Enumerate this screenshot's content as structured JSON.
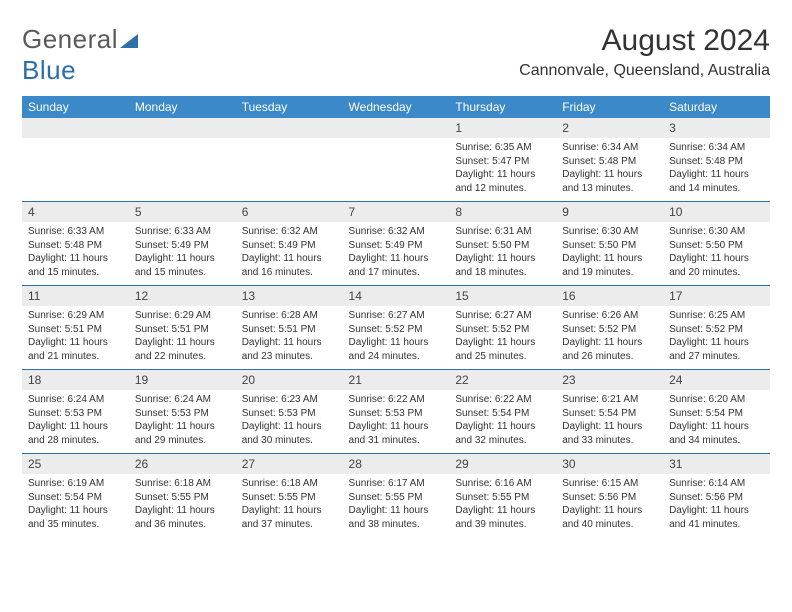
{
  "brand": {
    "part1": "General",
    "part2": "Blue"
  },
  "title": "August 2024",
  "location": "Cannonvale, Queensland, Australia",
  "weekday_labels": [
    "Sunday",
    "Monday",
    "Tuesday",
    "Wednesday",
    "Thursday",
    "Friday",
    "Saturday"
  ],
  "colors": {
    "header_blue": "#3b89c9",
    "rule_blue": "#2d6fa8",
    "day_bg": "#ececec",
    "background": "#ffffff",
    "text": "#222222"
  },
  "typography": {
    "month_title_pt": 30,
    "location_pt": 16,
    "weekday_pt": 12,
    "daynum_pt": 12,
    "body_pt": 10
  },
  "layout": {
    "columns": 7,
    "rows": 5,
    "first_weekday_index": 4
  },
  "days": [
    {
      "n": 1,
      "sunrise": "6:35 AM",
      "sunset": "5:47 PM",
      "daylight": "11 hours and 12 minutes."
    },
    {
      "n": 2,
      "sunrise": "6:34 AM",
      "sunset": "5:48 PM",
      "daylight": "11 hours and 13 minutes."
    },
    {
      "n": 3,
      "sunrise": "6:34 AM",
      "sunset": "5:48 PM",
      "daylight": "11 hours and 14 minutes."
    },
    {
      "n": 4,
      "sunrise": "6:33 AM",
      "sunset": "5:48 PM",
      "daylight": "11 hours and 15 minutes."
    },
    {
      "n": 5,
      "sunrise": "6:33 AM",
      "sunset": "5:49 PM",
      "daylight": "11 hours and 15 minutes."
    },
    {
      "n": 6,
      "sunrise": "6:32 AM",
      "sunset": "5:49 PM",
      "daylight": "11 hours and 16 minutes."
    },
    {
      "n": 7,
      "sunrise": "6:32 AM",
      "sunset": "5:49 PM",
      "daylight": "11 hours and 17 minutes."
    },
    {
      "n": 8,
      "sunrise": "6:31 AM",
      "sunset": "5:50 PM",
      "daylight": "11 hours and 18 minutes."
    },
    {
      "n": 9,
      "sunrise": "6:30 AM",
      "sunset": "5:50 PM",
      "daylight": "11 hours and 19 minutes."
    },
    {
      "n": 10,
      "sunrise": "6:30 AM",
      "sunset": "5:50 PM",
      "daylight": "11 hours and 20 minutes."
    },
    {
      "n": 11,
      "sunrise": "6:29 AM",
      "sunset": "5:51 PM",
      "daylight": "11 hours and 21 minutes."
    },
    {
      "n": 12,
      "sunrise": "6:29 AM",
      "sunset": "5:51 PM",
      "daylight": "11 hours and 22 minutes."
    },
    {
      "n": 13,
      "sunrise": "6:28 AM",
      "sunset": "5:51 PM",
      "daylight": "11 hours and 23 minutes."
    },
    {
      "n": 14,
      "sunrise": "6:27 AM",
      "sunset": "5:52 PM",
      "daylight": "11 hours and 24 minutes."
    },
    {
      "n": 15,
      "sunrise": "6:27 AM",
      "sunset": "5:52 PM",
      "daylight": "11 hours and 25 minutes."
    },
    {
      "n": 16,
      "sunrise": "6:26 AM",
      "sunset": "5:52 PM",
      "daylight": "11 hours and 26 minutes."
    },
    {
      "n": 17,
      "sunrise": "6:25 AM",
      "sunset": "5:52 PM",
      "daylight": "11 hours and 27 minutes."
    },
    {
      "n": 18,
      "sunrise": "6:24 AM",
      "sunset": "5:53 PM",
      "daylight": "11 hours and 28 minutes."
    },
    {
      "n": 19,
      "sunrise": "6:24 AM",
      "sunset": "5:53 PM",
      "daylight": "11 hours and 29 minutes."
    },
    {
      "n": 20,
      "sunrise": "6:23 AM",
      "sunset": "5:53 PM",
      "daylight": "11 hours and 30 minutes."
    },
    {
      "n": 21,
      "sunrise": "6:22 AM",
      "sunset": "5:53 PM",
      "daylight": "11 hours and 31 minutes."
    },
    {
      "n": 22,
      "sunrise": "6:22 AM",
      "sunset": "5:54 PM",
      "daylight": "11 hours and 32 minutes."
    },
    {
      "n": 23,
      "sunrise": "6:21 AM",
      "sunset": "5:54 PM",
      "daylight": "11 hours and 33 minutes."
    },
    {
      "n": 24,
      "sunrise": "6:20 AM",
      "sunset": "5:54 PM",
      "daylight": "11 hours and 34 minutes."
    },
    {
      "n": 25,
      "sunrise": "6:19 AM",
      "sunset": "5:54 PM",
      "daylight": "11 hours and 35 minutes."
    },
    {
      "n": 26,
      "sunrise": "6:18 AM",
      "sunset": "5:55 PM",
      "daylight": "11 hours and 36 minutes."
    },
    {
      "n": 27,
      "sunrise": "6:18 AM",
      "sunset": "5:55 PM",
      "daylight": "11 hours and 37 minutes."
    },
    {
      "n": 28,
      "sunrise": "6:17 AM",
      "sunset": "5:55 PM",
      "daylight": "11 hours and 38 minutes."
    },
    {
      "n": 29,
      "sunrise": "6:16 AM",
      "sunset": "5:55 PM",
      "daylight": "11 hours and 39 minutes."
    },
    {
      "n": 30,
      "sunrise": "6:15 AM",
      "sunset": "5:56 PM",
      "daylight": "11 hours and 40 minutes."
    },
    {
      "n": 31,
      "sunrise": "6:14 AM",
      "sunset": "5:56 PM",
      "daylight": "11 hours and 41 minutes."
    }
  ],
  "labels": {
    "sunrise": "Sunrise:",
    "sunset": "Sunset:",
    "daylight": "Daylight:"
  }
}
